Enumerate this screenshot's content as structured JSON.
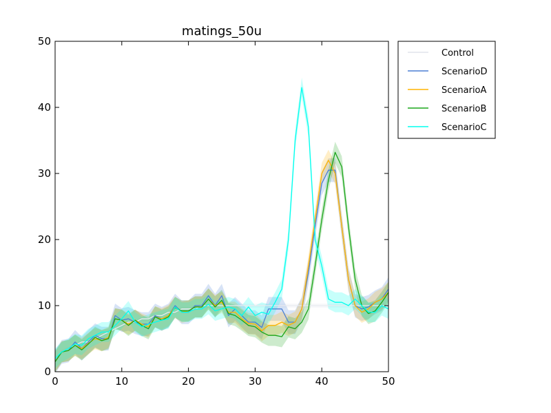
{
  "chart_data": {
    "type": "line",
    "title": "matings_50u",
    "xlabel": "",
    "ylabel": "",
    "xlim": [
      0,
      50
    ],
    "ylim": [
      0,
      50
    ],
    "xticks": [
      0,
      10,
      20,
      30,
      40,
      50
    ],
    "yticks": [
      0,
      10,
      20,
      30,
      40,
      50
    ],
    "grid": false,
    "legend_position": "outside-top-right",
    "x": [
      0,
      1,
      2,
      3,
      4,
      5,
      6,
      7,
      8,
      9,
      10,
      11,
      12,
      13,
      14,
      15,
      16,
      17,
      18,
      19,
      20,
      21,
      22,
      23,
      24,
      25,
      26,
      27,
      28,
      29,
      30,
      31,
      32,
      33,
      34,
      35,
      36,
      37,
      38,
      39,
      40,
      41,
      42,
      43,
      44,
      45,
      46,
      47,
      48,
      49,
      50
    ],
    "series": [
      {
        "name": "Control",
        "color": "#e8eaf0",
        "values": [
          2,
          3,
          3.5,
          4,
          4.5,
          4.5,
          5,
          5.5,
          6,
          6.5,
          7,
          7.5,
          7.5,
          8,
          8,
          8.5,
          8.5,
          9,
          9,
          9.5,
          9.5,
          9.5,
          10,
          10,
          10,
          10,
          10,
          10,
          10,
          10,
          10,
          10,
          10,
          10,
          10,
          10,
          10,
          10,
          10,
          10,
          10,
          10,
          10,
          10,
          10,
          10,
          10,
          10,
          10,
          10,
          10
        ],
        "band": 0.3
      },
      {
        "name": "ScenarioD",
        "color": "#4a7fd4",
        "values": [
          1.5,
          3,
          3.2,
          4.5,
          3.5,
          4.5,
          5.5,
          5,
          5,
          8.5,
          7.8,
          8,
          7.5,
          7.2,
          7.2,
          8.5,
          8,
          8.5,
          10,
          9,
          9,
          10,
          10,
          11.5,
          10,
          11.5,
          8.5,
          9.5,
          8.5,
          7.5,
          7.5,
          6.7,
          9.5,
          9.5,
          9.5,
          7.5,
          7.5,
          9.5,
          15,
          22,
          28.5,
          30.5,
          30.5,
          22,
          14,
          10,
          9.5,
          9.8,
          10.5,
          11,
          12.5
        ],
        "band": 1.8
      },
      {
        "name": "ScenarioA",
        "color": "#ffb300",
        "values": [
          1.5,
          3,
          3.2,
          4,
          3.5,
          4.3,
          5,
          4.7,
          5.2,
          8,
          7.8,
          7.2,
          7.8,
          7.2,
          6.8,
          8.3,
          8,
          8.5,
          9.8,
          9,
          9.2,
          9.8,
          9.8,
          11,
          10,
          10.5,
          9,
          9,
          8,
          7.3,
          7.2,
          6.2,
          7,
          7,
          7.5,
          7,
          7.5,
          9.5,
          16,
          23,
          30,
          32,
          30,
          22,
          14,
          10,
          9,
          9.5,
          10.5,
          11,
          12
        ],
        "band": 1.6
      },
      {
        "name": "ScenarioB",
        "color": "#1aa51a",
        "values": [
          1.5,
          3,
          3.2,
          4,
          3.3,
          4.2,
          5.2,
          4.7,
          5,
          8,
          7.8,
          7,
          7.8,
          7,
          6.5,
          8.3,
          7.8,
          8.3,
          9.7,
          9.2,
          9.2,
          9.8,
          9.8,
          11,
          9.8,
          10.8,
          8.8,
          8.5,
          7.8,
          7,
          6.8,
          6,
          5.5,
          5.5,
          5.3,
          6.8,
          6.5,
          7.5,
          9.5,
          16,
          23,
          29,
          33.2,
          31,
          22,
          14,
          10,
          8.8,
          9.2,
          10.5,
          12
        ],
        "band": 1.6
      },
      {
        "name": "ScenarioC",
        "color": "#00ffee",
        "values": [
          2,
          3,
          3.5,
          4.2,
          4,
          5,
          5.5,
          6,
          6,
          7,
          8,
          9.2,
          7.5,
          6.8,
          7.2,
          7.5,
          7.8,
          8,
          9.8,
          9,
          9,
          9.5,
          9.5,
          10.2,
          9.2,
          9.5,
          9.8,
          9.5,
          8.5,
          9.8,
          8.5,
          9,
          8.7,
          10.5,
          12.5,
          20,
          35,
          43,
          37,
          20,
          16,
          11,
          10.5,
          10.5,
          10,
          11,
          10,
          9,
          9,
          10,
          9.5
        ],
        "band": 1.5
      }
    ]
  }
}
